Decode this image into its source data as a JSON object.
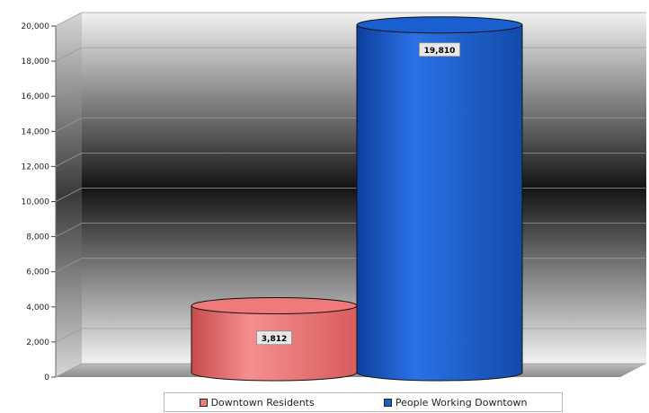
{
  "chart_data": {
    "type": "bar",
    "style": "3d-cylinder",
    "categories": [
      "Downtown Residents",
      "People Working Downtown"
    ],
    "values": [
      3812,
      19810
    ],
    "value_labels": [
      "3,812",
      "19,810"
    ],
    "colors": [
      "#f07a7a",
      "#1a5fd0"
    ],
    "ylim": [
      0,
      20000
    ],
    "yticks": [
      0,
      2000,
      4000,
      6000,
      8000,
      10000,
      12000,
      14000,
      16000,
      18000,
      20000
    ],
    "ytick_labels": [
      "0",
      "2,000",
      "4,000",
      "6,000",
      "8,000",
      "10,000",
      "12,000",
      "14,000",
      "16,000",
      "18,000",
      "20,000"
    ],
    "grid": true,
    "legend": {
      "position": "bottom",
      "entries": [
        "Downtown Residents",
        "People Working Downtown"
      ]
    }
  }
}
